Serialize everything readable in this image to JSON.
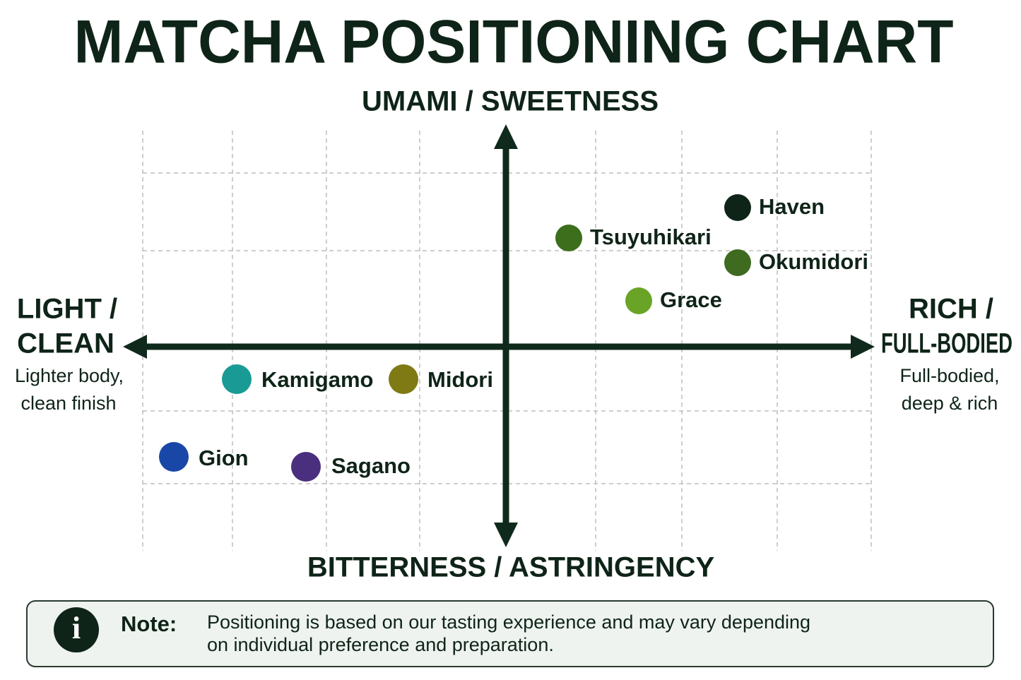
{
  "title": "MATCHA POSITIONING CHART",
  "axes": {
    "top": "UMAMI / SWEETNESS",
    "bottom": "BITTERNESS / ASTRINGENCY",
    "left": {
      "title": [
        "LIGHT /",
        "CLEAN"
      ],
      "description": [
        "Lighter body,",
        "clean finish"
      ]
    },
    "right": {
      "title": [
        "RICH /",
        "FULL-BODIED"
      ],
      "description": [
        "Full-bodied,",
        "deep & rich"
      ]
    }
  },
  "nodes": [
    {
      "label": "Haven"
    },
    {
      "label": "Tsuyuhikari"
    },
    {
      "label": "Okumidori"
    },
    {
      "label": "Grace"
    },
    {
      "label": "Kamigamo"
    },
    {
      "label": "Midori"
    },
    {
      "label": "Gion"
    },
    {
      "label": "Sagano"
    }
  ],
  "note": {
    "icon": "i",
    "label": "Note:",
    "text": [
      "Positioning is based on our tasting experience and may vary depending",
      "on individual preference and preparation."
    ]
  }
}
